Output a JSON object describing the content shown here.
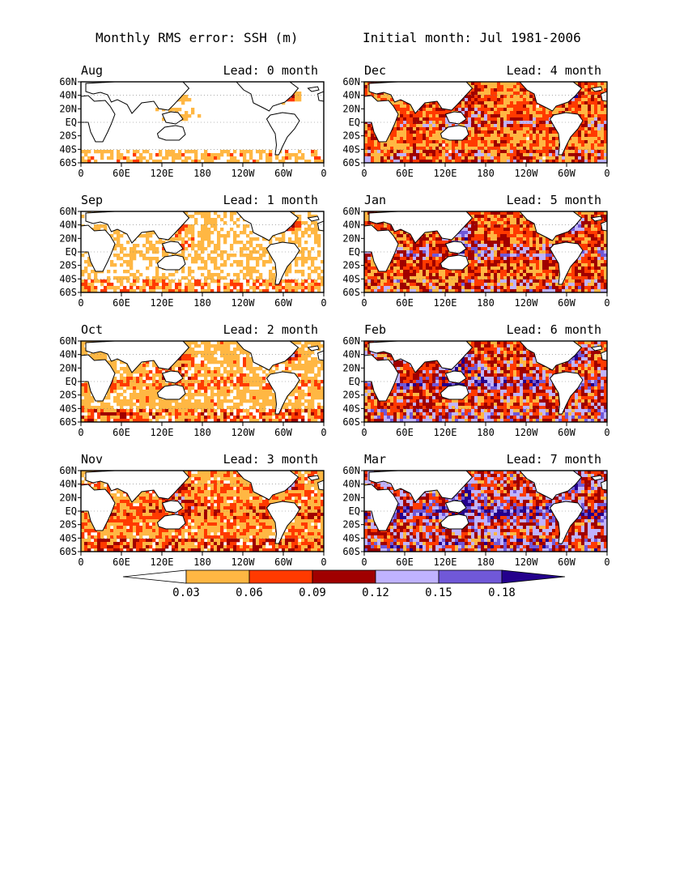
{
  "figure": {
    "title_left": "Monthly RMS error: SSH (m)",
    "title_right": "Initial month: Jul 1981-2006"
  },
  "axes": {
    "lon_ticks": [
      "0",
      "60E",
      "120E",
      "180",
      "120W",
      "60W",
      "0"
    ],
    "lat_ticks": [
      "60N",
      "40N",
      "20N",
      "EQ",
      "20S",
      "40S",
      "60S"
    ]
  },
  "panels": [
    {
      "month": "Aug",
      "lead_label": "Lead: 0 month",
      "lead": 0
    },
    {
      "month": "Dec",
      "lead_label": "Lead: 4 month",
      "lead": 4
    },
    {
      "month": "Sep",
      "lead_label": "Lead: 1 month",
      "lead": 1
    },
    {
      "month": "Jan",
      "lead_label": "Lead: 5 month",
      "lead": 5
    },
    {
      "month": "Oct",
      "lead_label": "Lead: 2 month",
      "lead": 2
    },
    {
      "month": "Feb",
      "lead_label": "Lead: 6 month",
      "lead": 6
    },
    {
      "month": "Nov",
      "lead_label": "Lead: 3 month",
      "lead": 3
    },
    {
      "month": "Mar",
      "lead_label": "Lead: 7 month",
      "lead": 7
    }
  ],
  "colorbar": {
    "tick_labels": [
      "0.03",
      "0.06",
      "0.09",
      "0.12",
      "0.15",
      "0.18"
    ],
    "levels": [
      0.03,
      0.06,
      0.09,
      0.12,
      0.15,
      0.18
    ],
    "colors": [
      "#ffffff",
      "#ffb743",
      "#ff3a00",
      "#a00000",
      "#c0b3ff",
      "#7058d8",
      "#24008c"
    ]
  }
}
